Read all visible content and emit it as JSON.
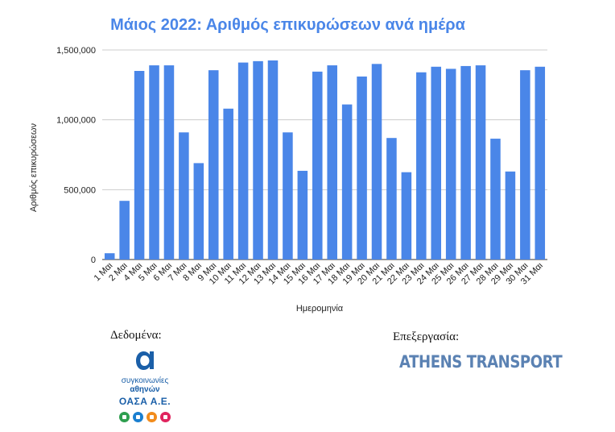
{
  "chart_data": {
    "type": "bar",
    "title": "Μάιος 2022: Αριθμός επικυρώσεων ανά ημέρα",
    "xlabel": "Ημερομηνία",
    "ylabel": "Αριθμός επικυρώσεων",
    "ylim": [
      0,
      1500000
    ],
    "yticks": [
      0,
      500000,
      1000000,
      1500000
    ],
    "ytick_labels": [
      "0",
      "500,000",
      "1,000,000",
      "1,500,000"
    ],
    "grid": true,
    "bar_color": "#4a86e8",
    "categories": [
      "1 Μαι",
      "2 Μαι",
      "4 Μαι",
      "5 Μαι",
      "6 Μαι",
      "7 Μαι",
      "8 Μαι",
      "9 Μαι",
      "10 Μαι",
      "11 Μαι",
      "12 Μαι",
      "13 Μαι",
      "14 Μαι",
      "15 Μαι",
      "16 Μαι",
      "17 Μαι",
      "18 Μαι",
      "19 Μαι",
      "20 Μαι",
      "21 Μαι",
      "22 Μαι",
      "23 Μαι",
      "24 Μαι",
      "25 Μαι",
      "26 Μαι",
      "27 Μαι",
      "28 Μαι",
      "29 Μαι",
      "30 Μαι",
      "31 Μαι"
    ],
    "values": [
      45000,
      420000,
      1350000,
      1390000,
      1390000,
      910000,
      690000,
      1355000,
      1080000,
      1410000,
      1420000,
      1425000,
      910000,
      635000,
      1345000,
      1390000,
      1110000,
      1310000,
      1400000,
      870000,
      625000,
      1340000,
      1380000,
      1365000,
      1385000,
      1390000,
      865000,
      630000,
      1355000,
      1380000
    ]
  },
  "footer": {
    "source_label": "Δεδομένα:",
    "processing_label": "Επεξεργασία:",
    "oasa_line1": "συγκοινωνίες",
    "oasa_line2": "αθηνών",
    "oasa_name": "ΟΑΣΑ Α.Ε.",
    "oasa_icon_colors": [
      "#2e9e4f",
      "#1a7fd0",
      "#f28c1c",
      "#e0245e"
    ],
    "athens_transport": "ATHENS TRANSPORT"
  }
}
